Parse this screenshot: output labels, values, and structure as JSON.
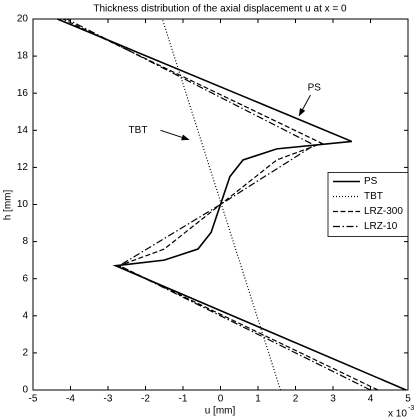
{
  "chart_data": {
    "type": "line",
    "title": "Thickness distribution of the axial displacement u at x = 0",
    "x_label": "u [mm]",
    "y_label": "h [mm]",
    "x_exponent_base": "x 10",
    "x_exponent": "-3",
    "xlim": [
      -5,
      5
    ],
    "xticks": [
      -5,
      -4,
      -3,
      -2,
      -1,
      0,
      1,
      2,
      3,
      4,
      5
    ],
    "ylim": [
      0,
      20
    ],
    "yticks": [
      0,
      2,
      4,
      6,
      8,
      10,
      12,
      14,
      16,
      18,
      20
    ],
    "grid": false,
    "legend": "east",
    "series": [
      {
        "name": "PS",
        "color": "#000000",
        "style": "solid",
        "x": [
          4.95,
          -2.8,
          -1.5,
          -0.6,
          -0.25,
          0,
          0.25,
          0.6,
          1.5,
          3.5,
          -4.35
        ],
        "values": [
          0,
          6.7,
          7.0,
          7.6,
          8.5,
          10,
          11.5,
          12.4,
          13.0,
          13.4,
          20
        ]
      },
      {
        "name": "TBT",
        "color": "#000000",
        "style": "dotted",
        "x": [
          1.6,
          -1.55
        ],
        "values": [
          0,
          20
        ]
      },
      {
        "name": "LRZ-300",
        "color": "#000000",
        "style": "dashed",
        "x": [
          4.2,
          -2.7,
          -1.5,
          0,
          1.5,
          2.7,
          -4.2
        ],
        "values": [
          0,
          6.7,
          7.6,
          10,
          12.4,
          13.3,
          20
        ]
      },
      {
        "name": "LRZ-10",
        "color": "#000000",
        "style": "dashdot",
        "x": [
          4.0,
          -2.7,
          0,
          2.5,
          -4.1
        ],
        "values": [
          0,
          6.7,
          10,
          13.2,
          20
        ]
      }
    ],
    "annotations": [
      "PS",
      "TBT"
    ]
  }
}
